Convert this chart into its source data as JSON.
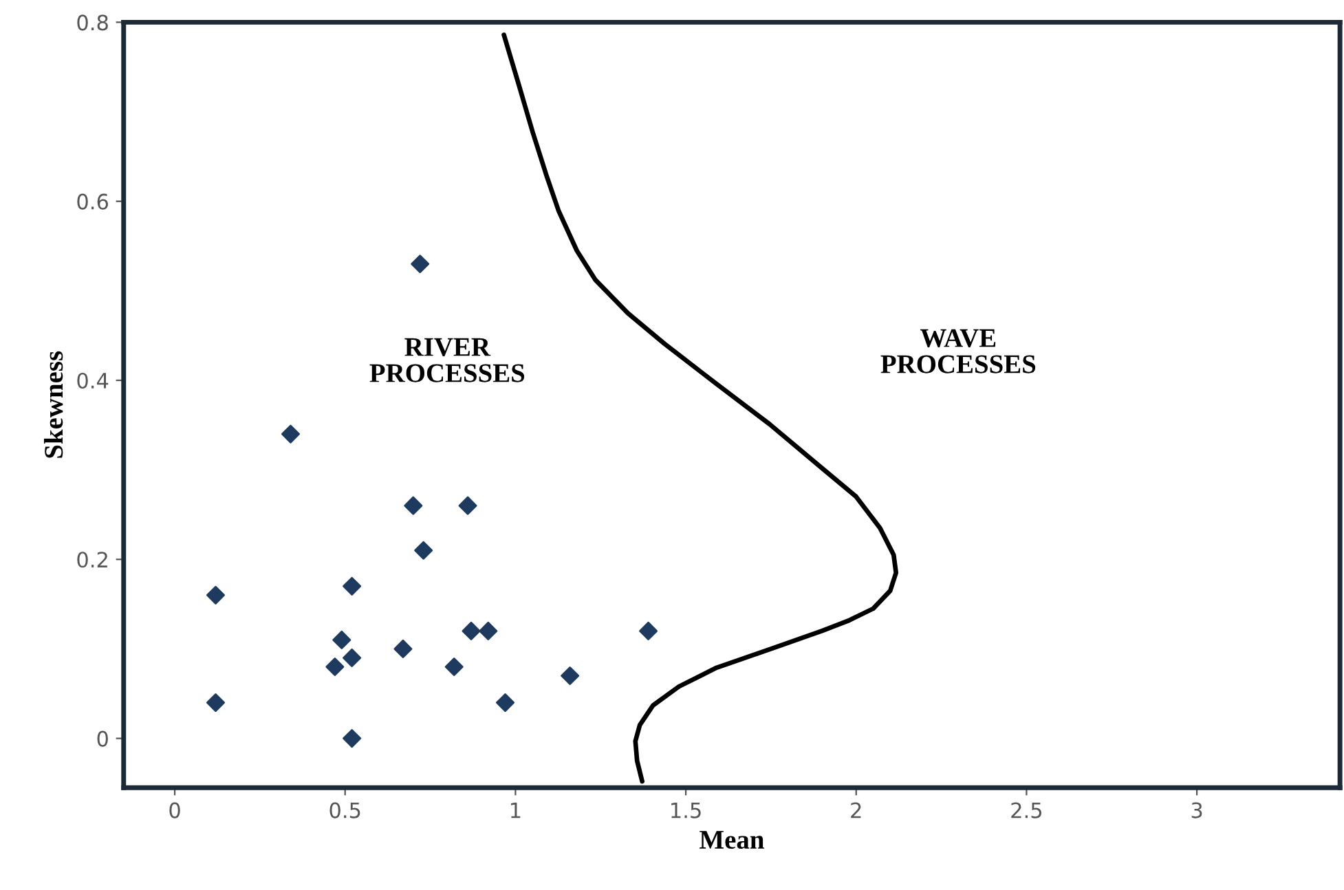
{
  "chart_data": {
    "type": "scatter",
    "xlabel": "Mean",
    "ylabel": "Skewness",
    "xlim": [
      -0.15,
      3.42
    ],
    "ylim": [
      -0.055,
      0.8
    ],
    "xticks": [
      0,
      0.5,
      1,
      1.5,
      2,
      2.5,
      3
    ],
    "yticks": [
      0,
      0.2,
      0.4,
      0.6,
      0.8
    ],
    "grid": false,
    "legend": false,
    "marker": "diamond",
    "series": [
      {
        "color": "#1f3a5f",
        "x": [
          0.12,
          0.12,
          0.34,
          0.72,
          0.7,
          0.86,
          0.73,
          0.52,
          0.49,
          0.47,
          0.52,
          0.52,
          0.67,
          0.82,
          0.87,
          0.92,
          0.97,
          1.16,
          1.39
        ],
        "values": [
          0.16,
          0.04,
          0.34,
          0.53,
          0.26,
          0.26,
          0.21,
          0.17,
          0.11,
          0.08,
          0.09,
          0.0,
          0.1,
          0.08,
          0.12,
          0.12,
          0.04,
          0.07,
          0.12
        ]
      },
      {
        "type": "line",
        "color": "#000000",
        "marker": "none",
        "line_style": "solid",
        "x": [
          0.966,
          1.01,
          1.05,
          1.09,
          1.127,
          1.18,
          1.235,
          1.33,
          1.437,
          1.59,
          1.746,
          1.89,
          2.0,
          2.07,
          2.11,
          2.117,
          2.1,
          2.05,
          1.98,
          1.899,
          1.75,
          1.59,
          1.48,
          1.404,
          1.365,
          1.352,
          1.357,
          1.372
        ],
        "values": [
          0.786,
          0.73,
          0.678,
          0.63,
          0.589,
          0.545,
          0.512,
          0.475,
          0.441,
          0.396,
          0.351,
          0.305,
          0.27,
          0.235,
          0.205,
          0.185,
          0.165,
          0.145,
          0.132,
          0.12,
          0.1,
          0.079,
          0.058,
          0.037,
          0.015,
          -0.003,
          -0.025,
          -0.048
        ]
      }
    ],
    "annotations": [
      "RIVER\nPROCESSES",
      "WAVE\nPROCESSES"
    ]
  }
}
